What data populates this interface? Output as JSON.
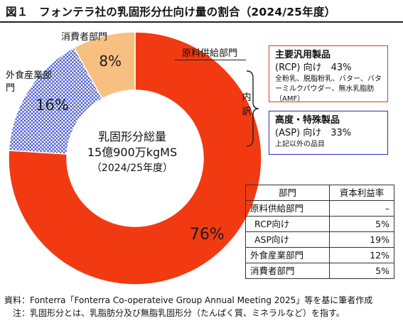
{
  "header": {
    "title": "図１　フォンテラ社の乳固形分仕向け量の割合（2024/25年度）"
  },
  "chart_data": {
    "type": "pie",
    "title": "図１　フォンテラ社の乳固形分仕向け量の割合（2024/25年度）",
    "categories": [
      "原料供給部門",
      "外食産業部門",
      "消費者部門"
    ],
    "values": [
      76,
      16,
      8
    ],
    "value_labels": [
      "76%",
      "16%",
      "8%"
    ],
    "colors": [
      "#f23a12",
      "#2b3fc9",
      "#f7bf80"
    ],
    "center_label": [
      "乳固形分総量",
      "15億900万kgMS",
      "（2024/25年度）"
    ]
  },
  "labels": {
    "consumer": "消費者部門",
    "food_service": "外食産業部門",
    "raw_material": "原料供給部門",
    "breakdown": "内訳"
  },
  "boxes": {
    "rcp": {
      "title": "主要汎用製品",
      "line": "(RCP) 向け　43%",
      "note": "全粉乳、脱脂粉乳、バター、バターミルクパウダー、無水乳脂肪（AMF）"
    },
    "asp": {
      "title": "高度・特殊製品",
      "line": "(ASP) 向け　33%",
      "note": "上記以外の品目"
    }
  },
  "table": {
    "headers": [
      "部門",
      "資本利益率"
    ],
    "rows": [
      {
        "name": "原料供給部門",
        "value": "–"
      },
      {
        "name": "RCP向け",
        "value": "5%"
      },
      {
        "name": "ASP向け",
        "value": "19%"
      },
      {
        "name": "外食産業部門",
        "value": "12%"
      },
      {
        "name": "消費者部門",
        "value": "5%"
      }
    ]
  },
  "footer": {
    "source": "資料：Fonterra「Fonterra Co-operateive Group Annual Meeting 2025」等を基に筆者作成",
    "note": "　注：乳固形分とは、乳脂肪分及び無脂乳固形分（たんぱく質、ミネラルなど）を指す。"
  }
}
